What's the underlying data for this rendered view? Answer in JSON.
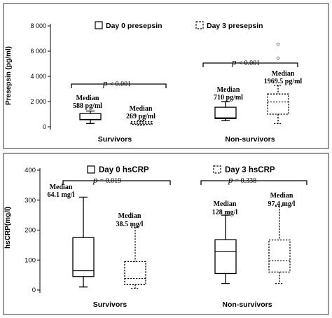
{
  "chart_data": [
    {
      "type": "boxplot",
      "ylabel": "Presepsin (pg/ml)",
      "ylim": [
        0,
        8000
      ],
      "yticks": [
        0,
        2000,
        4000,
        6000,
        8000
      ],
      "yticklabels": [
        "0",
        "2 000",
        "4 000",
        "6 000",
        "8 000"
      ],
      "categories": [
        "Survivors",
        "Non-survivors"
      ],
      "legend_position": "top",
      "series": [
        {
          "name": "Day 0 presepsin",
          "line_style": "solid",
          "boxes": [
            {
              "category": "Survivors",
              "whisker_low": 260,
              "q1": 560,
              "median": 588,
              "q3": 1050,
              "whisker_high": 1250
            },
            {
              "category": "Non-survivors",
              "whisker_low": 480,
              "q1": 650,
              "median": 710,
              "q3": 1550,
              "whisker_high": 2000
            }
          ]
        },
        {
          "name": "Day 3 presepsin",
          "line_style": "dashed",
          "boxes": [
            {
              "category": "Survivors",
              "whisker_low": 130,
              "q1": 190,
              "median": 269,
              "q3": 400,
              "whisker_high": 480
            },
            {
              "category": "Non-survivors",
              "whisker_low": 250,
              "q1": 1000,
              "median": 1969.5,
              "q3": 2600,
              "whisker_high": 3300,
              "outliers": [
                5450,
                6550
              ]
            }
          ]
        }
      ],
      "annotations": {
        "median_word": "Median",
        "survivors": {
          "p_value": "< 0.001",
          "day0_median": "588 pg/ml",
          "day3_median": "269 pg/ml"
        },
        "non_survivors": {
          "p_value": "< 0.001",
          "day0_median": "710 pg/ml",
          "day3_median": "1969.5 pg/ml"
        }
      }
    },
    {
      "type": "boxplot",
      "ylabel": "hsCRP(mg/l)",
      "ylim": [
        0,
        400
      ],
      "yticks": [
        0,
        100,
        200,
        300,
        400
      ],
      "yticklabels": [
        "0",
        "100",
        "200",
        "300",
        "400"
      ],
      "categories": [
        "Survivors",
        "Non-survivors"
      ],
      "legend_position": "top",
      "series": [
        {
          "name": "Day 0 hsCRP",
          "line_style": "solid",
          "boxes": [
            {
              "category": "Survivors",
              "whisker_low": 10,
              "q1": 45,
              "median": 64.1,
              "q3": 175,
              "whisker_high": 310
            },
            {
              "category": "Non-survivors",
              "whisker_low": 22,
              "q1": 55,
              "median": 128,
              "q3": 168,
              "whisker_high": 250
            }
          ]
        },
        {
          "name": "Day 3 hsCRP",
          "line_style": "dashed",
          "boxes": [
            {
              "category": "Survivors",
              "whisker_low": 5,
              "q1": 18,
              "median": 38.5,
              "q3": 95,
              "whisker_high": 210
            },
            {
              "category": "Non-survivors",
              "whisker_low": 22,
              "q1": 60,
              "median": 97.4,
              "q3": 167,
              "whisker_high": 280
            }
          ]
        }
      ],
      "annotations": {
        "median_word": "Median",
        "survivors": {
          "p_value": "= 0.019",
          "day0_median": "64.1 mg/l",
          "day3_median": "38.5 mg/l"
        },
        "non_survivors": {
          "p_value": "= 0.338",
          "day0_median": "128 mg/l",
          "day3_median": "97.4 mg/l"
        }
      }
    }
  ]
}
